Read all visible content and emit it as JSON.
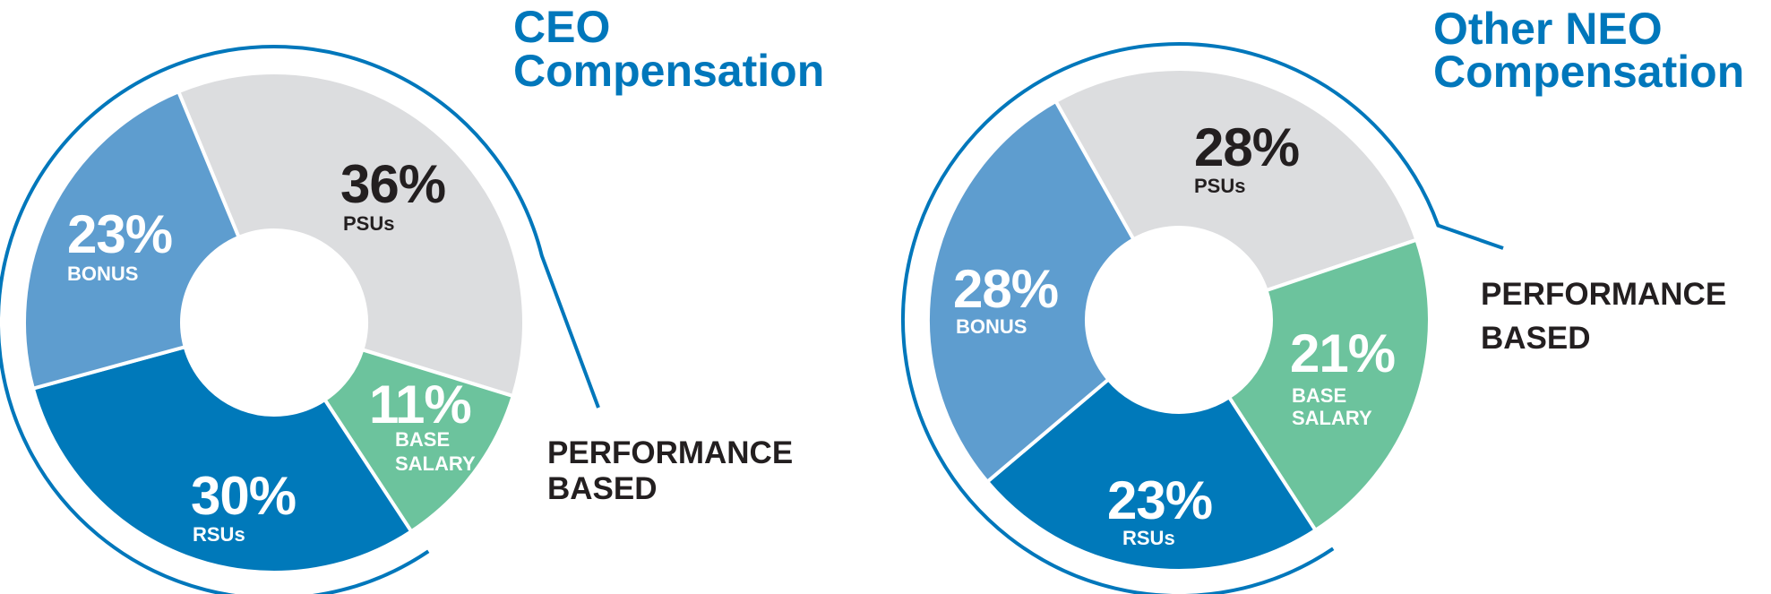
{
  "colors": {
    "title": "#0077bb",
    "ring": "#0077bb",
    "psus": "#dcdddf",
    "base_salary": "#6cc39d",
    "rsus": "#0079ba",
    "bonus": "#5e9dcf",
    "text_dark": "#231f20"
  },
  "chart_data": [
    {
      "type": "pie",
      "title": [
        "CEO",
        "Compensation"
      ],
      "unit": "%",
      "slices": [
        {
          "key": "psus",
          "label": "PSUs",
          "value": 36,
          "value_label": "36%"
        },
        {
          "key": "base_salary",
          "label": "BASE SALARY",
          "label_lines": [
            "BASE",
            "SALARY"
          ],
          "value": 11,
          "value_label": "11%"
        },
        {
          "key": "rsus",
          "label": "RSUs",
          "value": 30,
          "value_label": "30%"
        },
        {
          "key": "bonus",
          "label": "BONUS",
          "value": 23,
          "value_label": "23%"
        }
      ],
      "annotation": [
        "PERFORMANCE",
        "BASED"
      ]
    },
    {
      "type": "pie",
      "title": [
        "Other NEO",
        "Compensation"
      ],
      "unit": "%",
      "slices": [
        {
          "key": "psus",
          "label": "PSUs",
          "value": 28,
          "value_label": "28%"
        },
        {
          "key": "base_salary",
          "label": "BASE SALARY",
          "label_lines": [
            "BASE",
            "SALARY"
          ],
          "value": 21,
          "value_label": "21%"
        },
        {
          "key": "rsus",
          "label": "RSUs",
          "value": 23,
          "value_label": "23%"
        },
        {
          "key": "bonus",
          "label": "BONUS",
          "value": 28,
          "value_label": "28%"
        }
      ],
      "annotation": [
        "PERFORMANCE",
        "BASED"
      ]
    }
  ]
}
